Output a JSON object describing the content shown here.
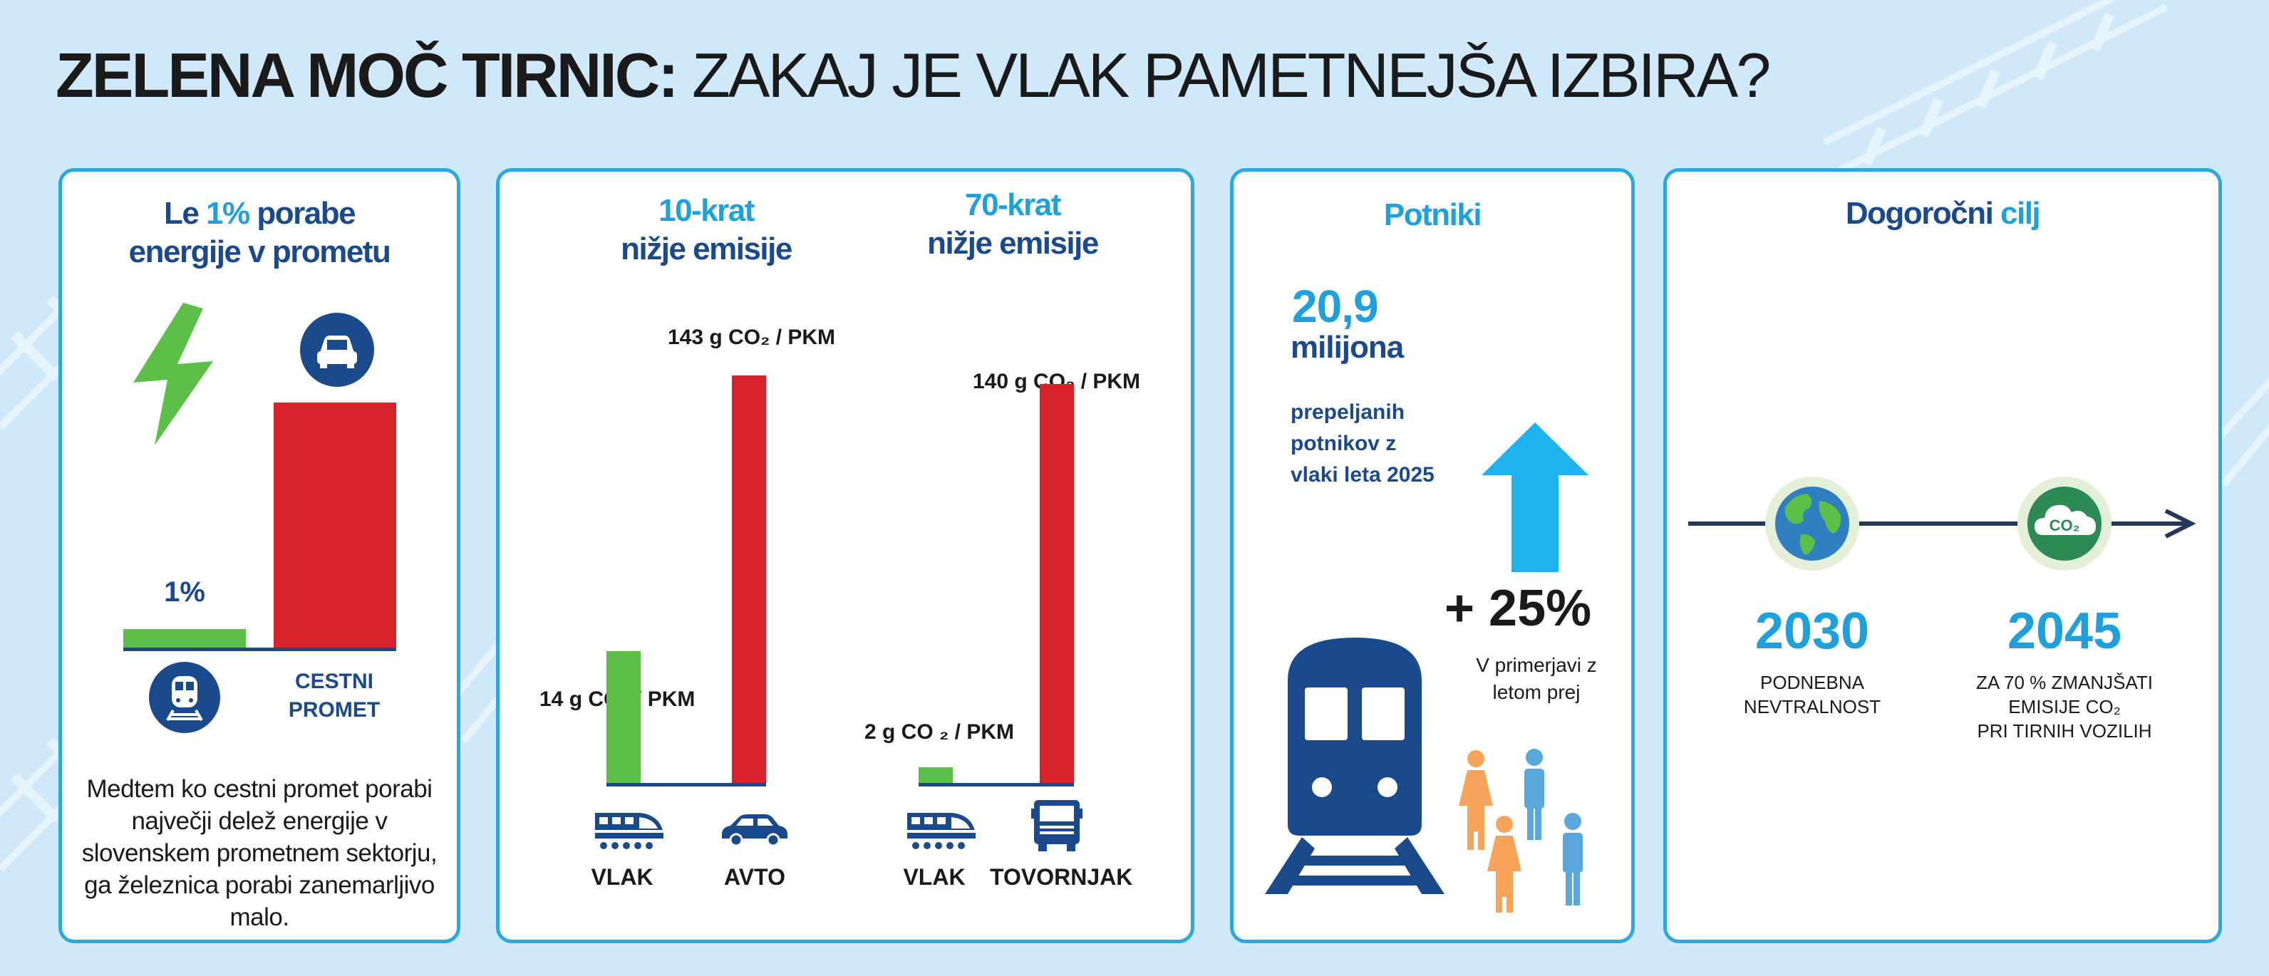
{
  "title": {
    "bold": "ZELENA MOČ TIRNIC:",
    "rest": " ZAKAJ JE VLAK PAMETNEJŠA IZBIRA?"
  },
  "card1": {
    "heading_pre": "Le ",
    "heading_pct": "1%",
    "heading_post": " porabe",
    "heading_line2": "energije v prometu",
    "rail_value_label": "1%",
    "road_label_1": "CESTNI",
    "road_label_2": "PROMET",
    "rail_share_pct": 1,
    "text": [
      "Medtem ko cestni promet porabi",
      "največji delež energije v",
      "slovenskem prometnem sektorju,",
      "ga železnica porabi zanemarljivo",
      "malo."
    ]
  },
  "card2": {
    "left": {
      "heading_1": "10-krat",
      "heading_2": "nižje emisije",
      "train_value": "14 g CO₂ / PKM",
      "car_value": "143 g CO₂ / PKM",
      "train_label": "VLAK",
      "car_label": "AVTO",
      "train_g": 14,
      "car_g": 143
    },
    "right": {
      "heading_1": "70-krat",
      "heading_2": "nižje emisije",
      "train_value": "2 g CO ₂ / PKM",
      "truck_value": "140 g CO₂ / PKM",
      "train_label": "VLAK",
      "truck_label": "TOVORNJAK",
      "train_g": 2,
      "truck_g": 140
    }
  },
  "card3": {
    "heading": "Potniki",
    "number": "20,9",
    "unit": "milijona",
    "desc": [
      "prepeljanih",
      "potnikov z",
      "vlaki leta 2025"
    ],
    "growth": "+ 25%",
    "compare": [
      "V primerjavi z",
      "letom prej"
    ]
  },
  "card4": {
    "heading_pre": "Dogoročni ",
    "heading_hl": "cilj",
    "year1": "2030",
    "goal1": [
      "PODNEBNA",
      "NEVTRALNOST"
    ],
    "year2": "2045",
    "goal2": [
      "ZA 70 % ZMANJŠATI",
      "EMISIJE CO₂",
      "PRI TIRNIH VOZILIH"
    ],
    "cloud_text": "CO₂"
  },
  "colors": {
    "green": "#5cbf47",
    "red": "#d9212a",
    "navy": "#1b4a8c",
    "cyan": "#1ea0dd",
    "orange": "#f7a35a",
    "blue_person": "#5aa7dc"
  },
  "icons": [
    "lightning-icon",
    "car-icon",
    "train-icon",
    "truck-icon",
    "arrow-up-icon",
    "people-icon",
    "globe-icon",
    "cloud-co2-icon"
  ]
}
